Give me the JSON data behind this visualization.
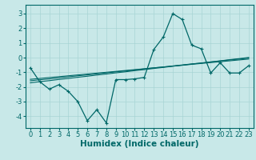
{
  "xlabel": "Humidex (Indice chaleur)",
  "ylabel": "",
  "bg_color": "#c8e8e8",
  "grid_color": "#a8d4d4",
  "line_color": "#006868",
  "x_values": [
    0,
    1,
    2,
    3,
    4,
    5,
    6,
    7,
    8,
    9,
    10,
    11,
    12,
    13,
    14,
    15,
    16,
    17,
    18,
    19,
    20,
    21,
    22,
    23
  ],
  "y_main": [
    -0.7,
    -1.65,
    -2.15,
    -1.85,
    -2.3,
    -3.0,
    -4.3,
    -3.55,
    -4.45,
    -1.5,
    -1.5,
    -1.45,
    -1.35,
    0.55,
    1.4,
    3.0,
    2.6,
    0.85,
    0.6,
    -1.05,
    -0.35,
    -1.05,
    -1.05,
    -0.55
  ],
  "y_reg1": [
    -1.72,
    -1.64,
    -1.57,
    -1.49,
    -1.42,
    -1.34,
    -1.27,
    -1.19,
    -1.12,
    -1.04,
    -0.97,
    -0.89,
    -0.82,
    -0.74,
    -0.67,
    -0.59,
    -0.52,
    -0.44,
    -0.37,
    -0.29,
    -0.22,
    -0.14,
    -0.07,
    0.01
  ],
  "y_reg2": [
    -1.58,
    -1.51,
    -1.45,
    -1.38,
    -1.31,
    -1.24,
    -1.18,
    -1.11,
    -1.04,
    -0.97,
    -0.91,
    -0.84,
    -0.77,
    -0.7,
    -0.64,
    -0.57,
    -0.5,
    -0.43,
    -0.37,
    -0.3,
    -0.23,
    -0.16,
    -0.1,
    -0.03
  ],
  "y_reg3": [
    -1.48,
    -1.42,
    -1.36,
    -1.3,
    -1.24,
    -1.18,
    -1.12,
    -1.06,
    -1.0,
    -0.94,
    -0.88,
    -0.82,
    -0.76,
    -0.7,
    -0.64,
    -0.58,
    -0.52,
    -0.46,
    -0.4,
    -0.34,
    -0.28,
    -0.22,
    -0.16,
    -0.1
  ],
  "ylim": [
    -4.8,
    3.6
  ],
  "xlim": [
    -0.5,
    23.5
  ],
  "yticks": [
    -4,
    -3,
    -2,
    -1,
    0,
    1,
    2,
    3
  ],
  "xticks": [
    0,
    1,
    2,
    3,
    4,
    5,
    6,
    7,
    8,
    9,
    10,
    11,
    12,
    13,
    14,
    15,
    16,
    17,
    18,
    19,
    20,
    21,
    22,
    23
  ],
  "tick_fontsize": 6.0,
  "xlabel_fontsize": 7.5
}
